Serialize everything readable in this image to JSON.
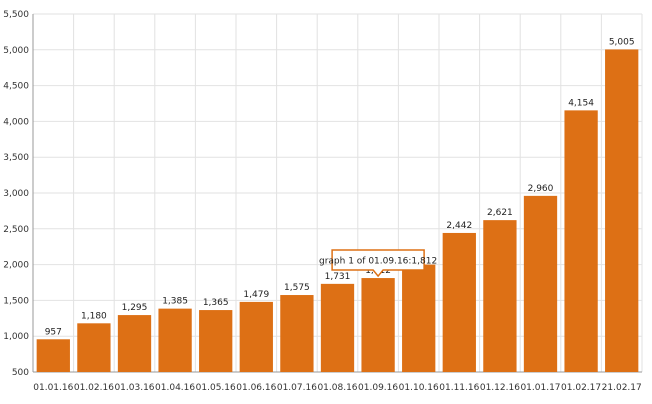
{
  "chart_data": {
    "type": "bar",
    "title": "",
    "xlabel": "",
    "ylabel": "",
    "categories": [
      "01.01.16",
      "01.02.16",
      "01.03.16",
      "01.04.16",
      "01.05.16",
      "01.06.16",
      "01.07.16",
      "01.08.16",
      "01.09.16",
      "01.10.16",
      "01.11.16",
      "01.12.16",
      "01.01.17",
      "01.02.17",
      "21.02.17"
    ],
    "values": [
      957,
      1180,
      1295,
      1385,
      1365,
      1479,
      1575,
      1731,
      1812,
      2000,
      2442,
      2621,
      2960,
      4154,
      5005
    ],
    "value_labels": [
      "957",
      "1,180",
      "1,295",
      "1,385",
      "1,365",
      "1,479",
      "1,575",
      "1,731",
      "1,812",
      "",
      "2,442",
      "2,621",
      "2,960",
      "4,154",
      "5,005"
    ],
    "ylim": [
      500,
      5500
    ],
    "yticks": [
      500,
      1000,
      1500,
      2000,
      2500,
      3000,
      3500,
      4000,
      4500,
      5000,
      5500
    ],
    "ytick_labels": [
      "500",
      "1,000",
      "1,500",
      "2,000",
      "2,500",
      "3,000",
      "3,500",
      "4,000",
      "4,500",
      "5,000",
      "5,500"
    ],
    "grid": true,
    "bar_color": "#dd7015",
    "tooltip": {
      "text": "graph 1 of 01.09.16:1,812",
      "category_index": 8,
      "border_color": "#dd7015"
    }
  }
}
